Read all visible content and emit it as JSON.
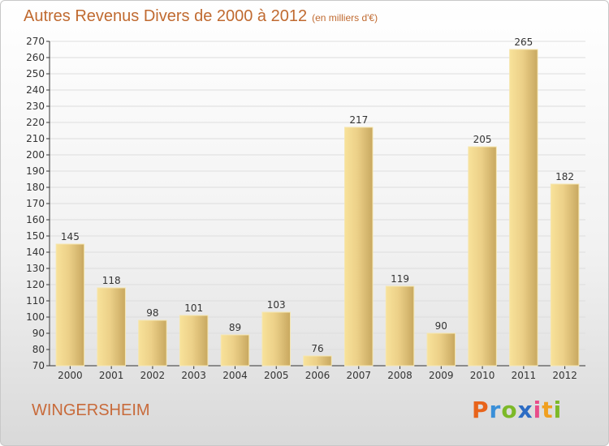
{
  "title": "Autres Revenus Divers de 2000 à 2012",
  "subtitle": "(en milliers d'€)",
  "city": "WINGERSHEIM",
  "logo": {
    "letters": [
      "P",
      "r",
      "o",
      "x",
      "i",
      "t",
      "i"
    ],
    "colors": [
      "#e8641b",
      "#3a8fd8",
      "#7cb928",
      "#2c6cc4",
      "#e84d8a",
      "#f0a020",
      "#7cb928"
    ]
  },
  "chart_data": {
    "type": "bar",
    "categories": [
      "2000",
      "2001",
      "2002",
      "2003",
      "2004",
      "2005",
      "2006",
      "2007",
      "2008",
      "2009",
      "2010",
      "2011",
      "2012"
    ],
    "values": [
      145,
      118,
      98,
      101,
      89,
      103,
      76,
      217,
      119,
      90,
      205,
      265,
      182
    ],
    "ylim": [
      70,
      270
    ],
    "ytick_step": 10,
    "grid": true,
    "bar_color": "#e6c878"
  }
}
